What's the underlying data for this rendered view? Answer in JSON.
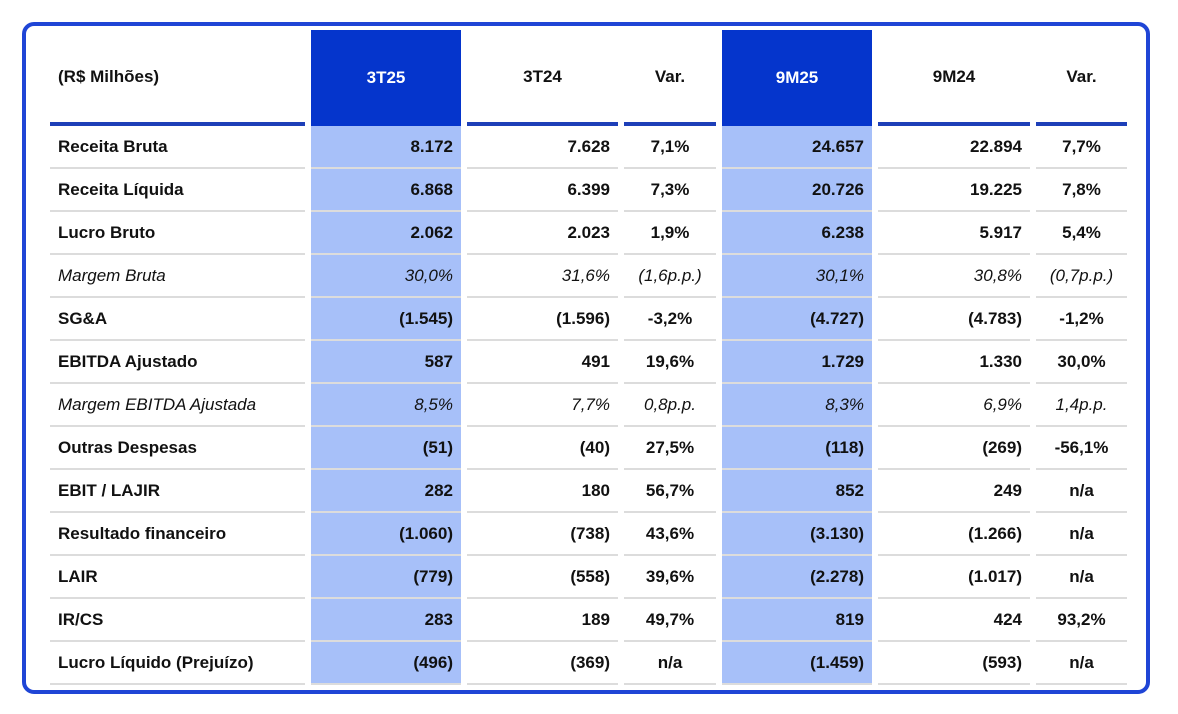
{
  "table": {
    "header": [
      "(R$ Milhões)",
      "3T25",
      "3T24",
      "Var.",
      "9M25",
      "9M24",
      "Var."
    ],
    "rows": [
      [
        "Receita Bruta",
        "8.172",
        "7.628",
        "7,1%",
        "24.657",
        "22.894",
        "7,7%"
      ],
      [
        "Receita Líquida",
        "6.868",
        "6.399",
        "7,3%",
        "20.726",
        "19.225",
        "7,8%"
      ],
      [
        "Lucro Bruto",
        "2.062",
        "2.023",
        "1,9%",
        "6.238",
        "5.917",
        "5,4%"
      ],
      [
        "Margem Bruta",
        "30,0%",
        "31,6%",
        "(1,6p.p.)",
        "30,1%",
        "30,8%",
        "(0,7p.p.)"
      ],
      [
        "SG&A",
        "(1.545)",
        "(1.596)",
        "-3,2%",
        "(4.727)",
        "(4.783)",
        "-1,2%"
      ],
      [
        "EBITDA Ajustado",
        "587",
        "491",
        "19,6%",
        "1.729",
        "1.330",
        "30,0%"
      ],
      [
        "Margem EBITDA Ajustada",
        "8,5%",
        "7,7%",
        "0,8p.p.",
        "8,3%",
        "6,9%",
        "1,4p.p."
      ],
      [
        "Outras Despesas",
        "(51)",
        "(40)",
        "27,5%",
        "(118)",
        "(269)",
        "-56,1%"
      ],
      [
        "EBIT / LAJIR",
        "282",
        "180",
        "56,7%",
        "852",
        "249",
        "n/a"
      ],
      [
        "Resultado financeiro",
        "(1.060)",
        "(738)",
        "43,6%",
        "(3.130)",
        "(1.266)",
        "n/a"
      ],
      [
        "LAIR",
        "(779)",
        "(558)",
        "39,6%",
        "(2.278)",
        "(1.017)",
        "n/a"
      ],
      [
        "IR/CS",
        "283",
        "189",
        "49,7%",
        "819",
        "424",
        "93,2%"
      ],
      [
        "Lucro Líquido (Prejuízo)",
        "(496)",
        "(369)",
        "n/a",
        "(1.459)",
        "(593)",
        "n/a"
      ]
    ]
  }
}
